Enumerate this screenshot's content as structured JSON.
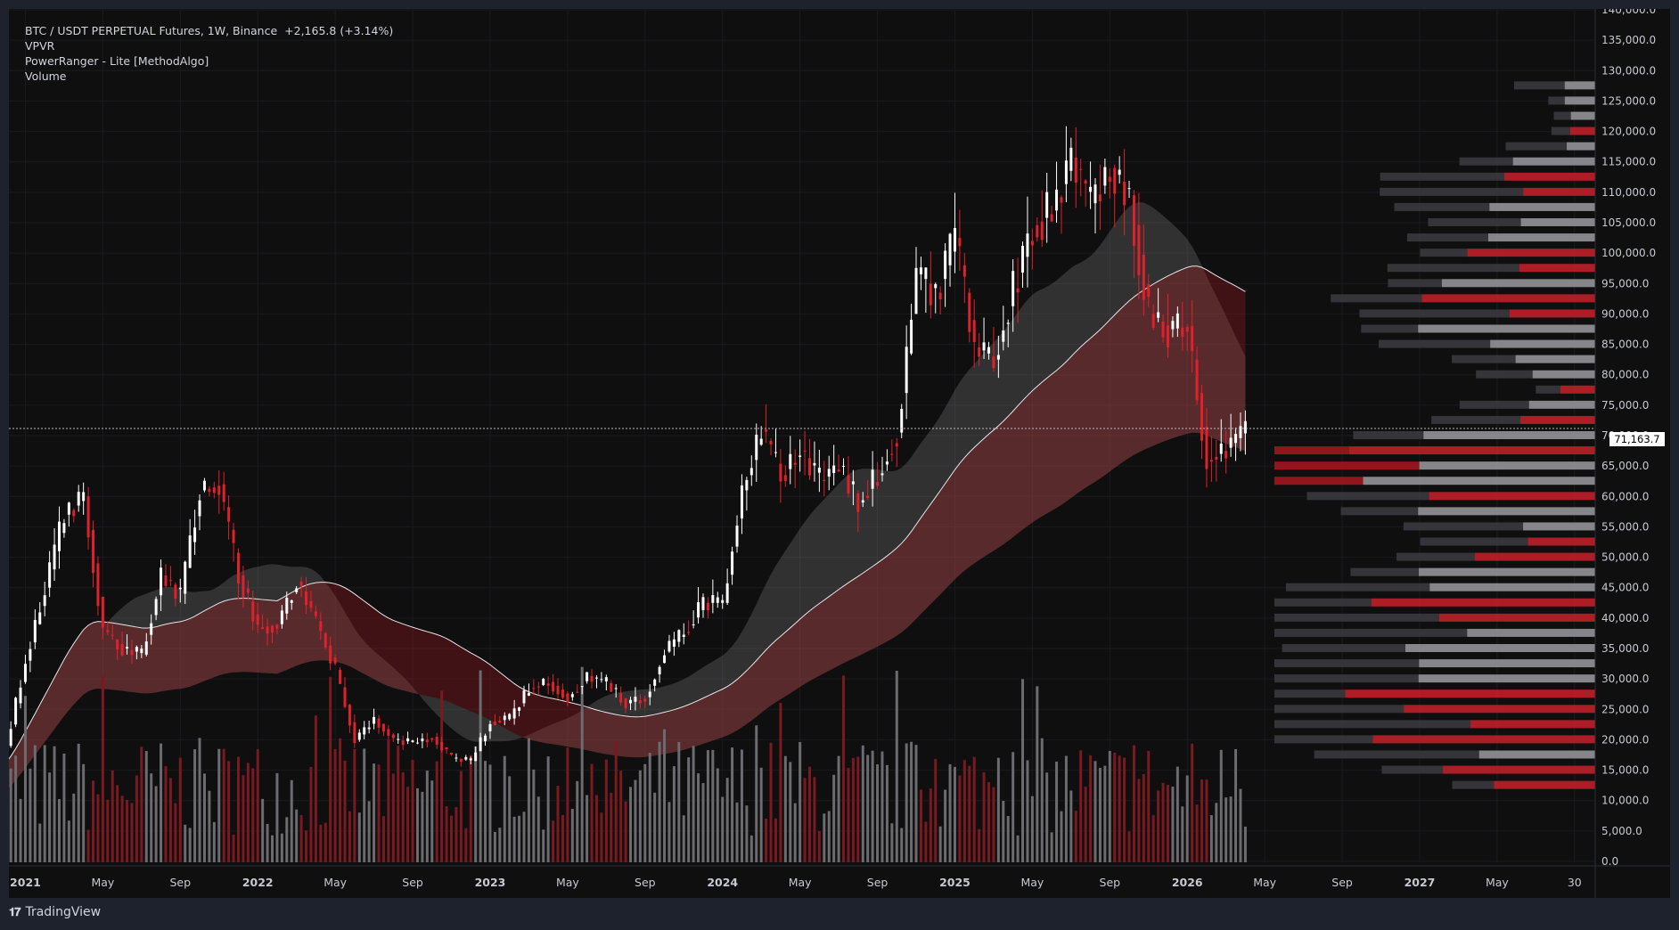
{
  "header": {
    "symbol_line": "BTC / USDT PERPETUAL Futures, 1W, Binance",
    "change": "+2,165.8 (+3.14%)",
    "indicators": [
      "VPVR",
      "PowerRanger - Lite [MethodAlgo]",
      "Volume"
    ]
  },
  "footer": {
    "logo": "𝟏𝟕",
    "brand": "TradingView"
  },
  "colors": {
    "background": "#0f0f10",
    "up": "#ffffff",
    "down": "#e0202b",
    "grid": "#1c1c1f",
    "text": "#d1d4dc"
  },
  "chart_data": {
    "type": "candlestick",
    "title": "BTC / USDT PERPETUAL Futures, 1W, Binance",
    "last_price": "71,163.7",
    "y_axis": {
      "min": 0,
      "max": 140000,
      "scale": "linear",
      "tick_labels": [
        "140,000.0",
        "135,000.0",
        "130,000.0",
        "125,000.0",
        "120,000.0",
        "115,000.0",
        "110,000.0",
        "105,000.0",
        "100,000.0",
        "95,000.0",
        "90,000.0",
        "85,000.0",
        "80,000.0",
        "75,000.0",
        "70,000.0",
        "65,000.0",
        "60,000.0",
        "55,000.0",
        "50,000.0",
        "45,000.0",
        "40,000.0",
        "35,000.0",
        "30,000.0",
        "25,000.0",
        "20,000.0",
        "15,000.0",
        "10,000.0",
        "5,000.0",
        "0.0"
      ]
    },
    "x_axis": {
      "range": [
        "2020-11",
        "2027-12"
      ],
      "tick_labels": [
        {
          "date": "2021-01",
          "label": "2021",
          "bold": true
        },
        {
          "date": "2021-05",
          "label": "May"
        },
        {
          "date": "2021-09",
          "label": "Sep"
        },
        {
          "date": "2022-01",
          "label": "2022",
          "bold": true
        },
        {
          "date": "2022-05",
          "label": "May"
        },
        {
          "date": "2022-09",
          "label": "Sep"
        },
        {
          "date": "2023-01",
          "label": "2023",
          "bold": true
        },
        {
          "date": "2023-05",
          "label": "May"
        },
        {
          "date": "2023-09",
          "label": "Sep"
        },
        {
          "date": "2024-01",
          "label": "2024",
          "bold": true
        },
        {
          "date": "2024-05",
          "label": "May"
        },
        {
          "date": "2024-09",
          "label": "Sep"
        },
        {
          "date": "2025-01",
          "label": "2025",
          "bold": true
        },
        {
          "date": "2025-05",
          "label": "May"
        },
        {
          "date": "2025-09",
          "label": "Sep"
        },
        {
          "date": "2026-01",
          "label": "2026",
          "bold": true
        },
        {
          "date": "2026-05",
          "label": "May"
        },
        {
          "date": "2026-09",
          "label": "Sep"
        },
        {
          "date": "2027-01",
          "label": "2027",
          "bold": true
        },
        {
          "date": "2027-05",
          "label": "May"
        },
        {
          "date": "2027-09",
          "label": "30"
        }
      ]
    },
    "price_path": [
      [
        "2020-11",
        13500
      ],
      [
        "2020-12",
        19000
      ],
      [
        "2021-01",
        33000
      ],
      [
        "2021-02",
        45000
      ],
      [
        "2021-03",
        57000
      ],
      [
        "2021-04",
        60000
      ],
      [
        "2021-05",
        38000
      ],
      [
        "2021-06",
        35000
      ],
      [
        "2021-07",
        34000
      ],
      [
        "2021-08",
        47000
      ],
      [
        "2021-09",
        44000
      ],
      [
        "2021-10",
        61000
      ],
      [
        "2021-11",
        62000
      ],
      [
        "2021-12",
        47000
      ],
      [
        "2022-01",
        38500
      ],
      [
        "2022-02",
        39000
      ],
      [
        "2022-03",
        46000
      ],
      [
        "2022-04",
        39500
      ],
      [
        "2022-05",
        31500
      ],
      [
        "2022-06",
        20000
      ],
      [
        "2022-07",
        23500
      ],
      [
        "2022-08",
        20000
      ],
      [
        "2022-09",
        19500
      ],
      [
        "2022-10",
        20500
      ],
      [
        "2022-11",
        17000
      ],
      [
        "2022-12",
        16500
      ],
      [
        "2023-01",
        23000
      ],
      [
        "2023-02",
        23500
      ],
      [
        "2023-03",
        28500
      ],
      [
        "2023-04",
        29500
      ],
      [
        "2023-05",
        27000
      ],
      [
        "2023-06",
        30500
      ],
      [
        "2023-07",
        29300
      ],
      [
        "2023-08",
        26000
      ],
      [
        "2023-09",
        27000
      ],
      [
        "2023-10",
        34500
      ],
      [
        "2023-11",
        37700
      ],
      [
        "2023-12",
        42500
      ],
      [
        "2024-01",
        42500
      ],
      [
        "2024-02",
        61000
      ],
      [
        "2024-03",
        71000
      ],
      [
        "2024-04",
        63500
      ],
      [
        "2024-05",
        67500
      ],
      [
        "2024-06",
        62700
      ],
      [
        "2024-07",
        65000
      ],
      [
        "2024-08",
        59000
      ],
      [
        "2024-09",
        63500
      ],
      [
        "2024-10",
        70500
      ],
      [
        "2024-11",
        96500
      ],
      [
        "2024-12",
        93500
      ],
      [
        "2025-01",
        102500
      ],
      [
        "2025-02",
        84500
      ],
      [
        "2025-03",
        82500
      ],
      [
        "2025-04",
        94200
      ],
      [
        "2025-05",
        104600
      ],
      [
        "2025-06",
        107000
      ],
      [
        "2025-07",
        115700
      ],
      [
        "2025-08",
        108200
      ],
      [
        "2025-09",
        114000
      ],
      [
        "2025-10",
        109500
      ],
      [
        "2025-11",
        90000
      ],
      [
        "2025-12",
        87500
      ],
      [
        "2026-01",
        88000
      ],
      [
        "2026-02",
        66000
      ],
      [
        "2026-03",
        68000
      ],
      [
        "2026-04",
        71163.7
      ]
    ],
    "series": [
      {
        "name": "Volume",
        "type": "histogram"
      },
      {
        "name": "VPVR",
        "type": "volume-profile"
      },
      {
        "name": "PowerRanger - Lite [MethodAlgo]",
        "type": "bands"
      }
    ]
  }
}
